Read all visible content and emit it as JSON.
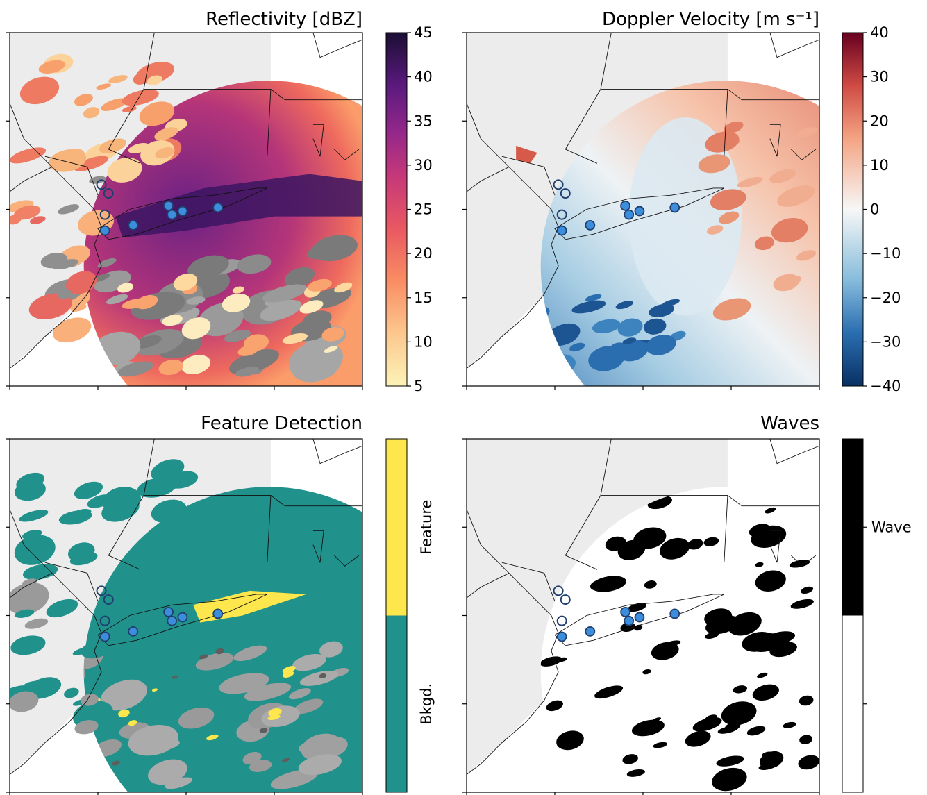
{
  "chart_data": [
    {
      "type": "heatmap",
      "title": "Reflectivity [dBZ]",
      "colorbar": {
        "ticks": [
          5,
          10,
          15,
          20,
          25,
          30,
          35,
          40,
          45
        ],
        "range": [
          5,
          45
        ],
        "colormap": "magma_r"
      },
      "markers": {
        "filled": 6,
        "open": 3,
        "color": "#3c8ddc"
      },
      "grid": false
    },
    {
      "type": "heatmap",
      "title": "Doppler Velocity [m s⁻¹]",
      "colorbar": {
        "ticks": [
          40,
          30,
          20,
          10,
          0,
          -10,
          -20,
          -30,
          -40
        ],
        "tick_labels": [
          "40",
          "30",
          "20",
          "10",
          "0",
          "−10",
          "−20",
          "−30",
          "−40"
        ],
        "range": [
          -40,
          40
        ],
        "colormap": "RdBu_r"
      },
      "markers": {
        "filled": 6,
        "open": 3,
        "color": "#3c8ddc"
      },
      "grid": false
    },
    {
      "type": "heatmap",
      "title": "Feature Detection",
      "colorbar": {
        "categories": [
          "Feature",
          "Bkgd."
        ],
        "colors": [
          "#fde74c",
          "#21918c"
        ]
      },
      "markers": {
        "filled": 6,
        "open": 3,
        "color": "#3c8ddc"
      },
      "grid": false
    },
    {
      "type": "heatmap",
      "title": "Waves",
      "colorbar": {
        "categories": [
          "Wave",
          ""
        ],
        "colors": [
          "#000000",
          "#ffffff"
        ]
      },
      "markers": {
        "filled": 6,
        "open": 3,
        "color": "#3c8ddc"
      },
      "grid": false
    }
  ]
}
